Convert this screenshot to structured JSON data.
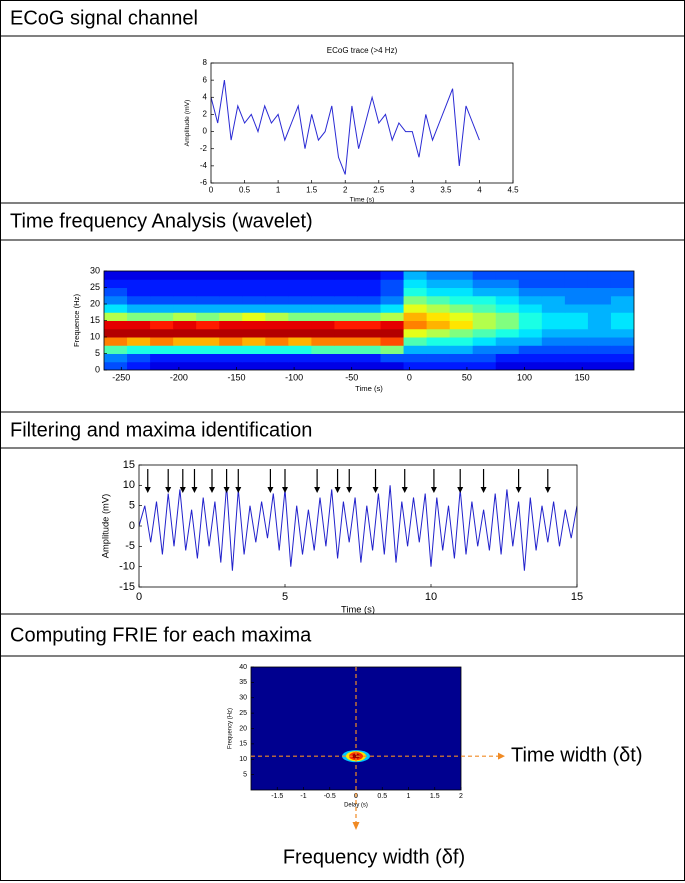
{
  "sections": [
    "ECoG signal channel",
    "Time frequency Analysis (wavelet)",
    "Filtering and maxima identification",
    "Computing FRIE for each maxima"
  ],
  "chart_data": [
    {
      "type": "line",
      "title": "ECoG trace (>4 Hz)",
      "x_label": "Time (s)",
      "y_label": "Amplitude (mV)",
      "color": "#2a2ad4",
      "x": [
        0,
        0.1,
        0.2,
        0.3,
        0.4,
        0.5,
        0.6,
        0.7,
        0.8,
        0.9,
        1,
        1.1,
        1.2,
        1.3,
        1.4,
        1.5,
        1.6,
        1.7,
        1.8,
        1.9,
        2,
        2.1,
        2.2,
        2.3,
        2.4,
        2.5,
        2.6,
        2.7,
        2.8,
        2.9,
        3,
        3.1,
        3.2,
        3.3,
        3.4,
        3.5,
        3.6,
        3.7,
        3.8,
        3.9,
        4
      ],
      "values": [
        4,
        1,
        6,
        -1,
        3,
        1,
        2,
        0,
        3,
        1,
        2,
        -1,
        1,
        3,
        -2,
        2,
        -1,
        0,
        3,
        -3,
        -5,
        3,
        -2,
        1,
        4,
        1,
        2,
        -1,
        1,
        0,
        0,
        -3,
        2,
        -1,
        1,
        3,
        5,
        -4,
        3,
        1,
        -1
      ],
      "xlim": [
        0,
        4.5
      ],
      "xticks": [
        0,
        0.5,
        1,
        1.5,
        2,
        2.5,
        3,
        3.5,
        4,
        4.5
      ],
      "ylim": [
        -6,
        8
      ],
      "yticks": [
        -6,
        -4,
        -2,
        0,
        2,
        4,
        6,
        8
      ]
    },
    {
      "type": "heatmap",
      "x_label": "Time (s)",
      "y_label": "Frequence (Hz)",
      "x": [
        -255,
        -235,
        -215,
        -195,
        -175,
        -155,
        -135,
        -115,
        -95,
        -75,
        -55,
        -35,
        -15,
        5,
        25,
        45,
        65,
        85,
        105,
        125,
        145,
        165,
        185
      ],
      "y": [
        1.25,
        3.75,
        6.25,
        8.75,
        11.25,
        13.75,
        16.25,
        18.75,
        21.25,
        23.75,
        26.25,
        28.75
      ],
      "z": [
        [
          0.2,
          0.15,
          0.1,
          0.1,
          0.1,
          0.1,
          0.1,
          0.1,
          0.1,
          0.1,
          0.1,
          0.1,
          0.1,
          0.15,
          0.15,
          0.15,
          0.15,
          0.1,
          0.1,
          0.1,
          0.1,
          0.1,
          0.1
        ],
        [
          0.25,
          0.2,
          0.15,
          0.15,
          0.15,
          0.15,
          0.15,
          0.15,
          0.15,
          0.15,
          0.15,
          0.15,
          0.2,
          0.2,
          0.2,
          0.2,
          0.2,
          0.15,
          0.15,
          0.15,
          0.15,
          0.15,
          0.15
        ],
        [
          0.45,
          0.4,
          0.4,
          0.4,
          0.4,
          0.4,
          0.4,
          0.4,
          0.4,
          0.45,
          0.45,
          0.45,
          0.5,
          0.3,
          0.3,
          0.3,
          0.25,
          0.25,
          0.2,
          0.2,
          0.2,
          0.2,
          0.2
        ],
        [
          0.75,
          0.7,
          0.75,
          0.7,
          0.7,
          0.75,
          0.7,
          0.75,
          0.7,
          0.75,
          0.75,
          0.75,
          0.8,
          0.45,
          0.4,
          0.4,
          0.35,
          0.3,
          0.3,
          0.25,
          0.25,
          0.25,
          0.25
        ],
        [
          0.95,
          0.95,
          0.95,
          0.95,
          0.95,
          0.95,
          0.95,
          0.95,
          0.95,
          0.95,
          0.95,
          0.95,
          0.95,
          0.6,
          0.55,
          0.5,
          0.45,
          0.4,
          0.35,
          0.3,
          0.3,
          0.3,
          0.3
        ],
        [
          0.9,
          0.9,
          0.85,
          0.9,
          0.85,
          0.9,
          0.9,
          0.9,
          0.9,
          0.9,
          0.85,
          0.85,
          0.9,
          0.75,
          0.7,
          0.65,
          0.55,
          0.5,
          0.4,
          0.35,
          0.35,
          0.3,
          0.35
        ],
        [
          0.55,
          0.5,
          0.5,
          0.55,
          0.5,
          0.55,
          0.6,
          0.55,
          0.5,
          0.5,
          0.5,
          0.5,
          0.55,
          0.7,
          0.65,
          0.6,
          0.55,
          0.5,
          0.4,
          0.35,
          0.35,
          0.3,
          0.35
        ],
        [
          0.35,
          0.3,
          0.3,
          0.3,
          0.3,
          0.3,
          0.3,
          0.3,
          0.3,
          0.3,
          0.3,
          0.3,
          0.35,
          0.6,
          0.55,
          0.5,
          0.45,
          0.4,
          0.35,
          0.3,
          0.3,
          0.3,
          0.3
        ],
        [
          0.25,
          0.2,
          0.2,
          0.2,
          0.2,
          0.2,
          0.2,
          0.2,
          0.2,
          0.2,
          0.2,
          0.2,
          0.25,
          0.5,
          0.45,
          0.4,
          0.4,
          0.35,
          0.3,
          0.3,
          0.25,
          0.25,
          0.3
        ],
        [
          0.2,
          0.15,
          0.15,
          0.15,
          0.15,
          0.15,
          0.15,
          0.15,
          0.15,
          0.15,
          0.15,
          0.15,
          0.2,
          0.4,
          0.35,
          0.35,
          0.3,
          0.3,
          0.25,
          0.25,
          0.25,
          0.25,
          0.25
        ],
        [
          0.15,
          0.15,
          0.15,
          0.15,
          0.15,
          0.15,
          0.15,
          0.15,
          0.15,
          0.15,
          0.15,
          0.15,
          0.2,
          0.35,
          0.3,
          0.3,
          0.25,
          0.25,
          0.2,
          0.2,
          0.2,
          0.2,
          0.2
        ],
        [
          0.1,
          0.1,
          0.1,
          0.1,
          0.1,
          0.1,
          0.1,
          0.1,
          0.1,
          0.1,
          0.1,
          0.1,
          0.15,
          0.3,
          0.25,
          0.25,
          0.2,
          0.2,
          0.2,
          0.2,
          0.2,
          0.2,
          0.2
        ]
      ],
      "xlim": [
        -265,
        195
      ],
      "xticks": [
        -250,
        -200,
        -150,
        -100,
        -50,
        0,
        50,
        100,
        150
      ],
      "ylim": [
        0,
        30
      ],
      "yticks": [
        0,
        5,
        10,
        15,
        20,
        25,
        30
      ]
    },
    {
      "type": "line",
      "x_label": "Time (s)",
      "y_label": "Amplitude (mV)",
      "color": "#2222cc",
      "x": [
        0,
        0.2,
        0.4,
        0.6,
        0.8,
        1,
        1.2,
        1.4,
        1.6,
        1.8,
        2,
        2.2,
        2.4,
        2.6,
        2.8,
        3,
        3.2,
        3.4,
        3.6,
        3.8,
        4,
        4.2,
        4.4,
        4.6,
        4.8,
        5,
        5.2,
        5.4,
        5.6,
        5.8,
        6,
        6.2,
        6.4,
        6.6,
        6.8,
        7,
        7.2,
        7.4,
        7.6,
        7.8,
        8,
        8.2,
        8.4,
        8.6,
        8.8,
        9,
        9.2,
        9.4,
        9.6,
        9.8,
        10,
        10.2,
        10.4,
        10.6,
        10.8,
        11,
        11.2,
        11.4,
        11.6,
        11.8,
        12,
        12.2,
        12.4,
        12.6,
        12.8,
        13,
        13.2,
        13.4,
        13.6,
        13.8,
        14,
        14.2,
        14.4,
        14.6,
        14.8,
        15
      ],
      "values": [
        0,
        5,
        -4,
        6,
        -7,
        8,
        -5,
        9,
        -6,
        4,
        -8,
        7,
        -5,
        6,
        -9,
        10,
        -11,
        9,
        -7,
        5,
        -4,
        6,
        -3,
        8,
        -6,
        9,
        -10,
        5,
        -7,
        4,
        -6,
        7,
        -5,
        9,
        -8,
        6,
        -4,
        7,
        -9,
        5,
        -6,
        8,
        -7,
        10,
        -9,
        6,
        -5,
        7,
        -4,
        8,
        -10,
        7,
        -6,
        5,
        -8,
        9,
        -7,
        6,
        -5,
        4,
        -6,
        8,
        -7,
        9,
        -5,
        6,
        -11,
        7,
        -6,
        5,
        -4,
        6,
        -5,
        4,
        -3,
        5
      ],
      "maxima_x": [
        0.3,
        1,
        1.5,
        1.9,
        2.5,
        3,
        3.4,
        4.5,
        5,
        6.1,
        6.8,
        7.2,
        8.1,
        9.1,
        10.1,
        11,
        11.8,
        13,
        14
      ],
      "xlim": [
        0,
        15
      ],
      "xticks": [
        0,
        5,
        10,
        15
      ],
      "ylim": [
        -15,
        15
      ],
      "yticks": [
        -15,
        -10,
        -5,
        0,
        5,
        10,
        15
      ]
    },
    {
      "type": "peak",
      "x_label": "Delay (s)",
      "y_label": "Frequency (Hz)",
      "background": "#00008f",
      "line_color": "#f08a24",
      "peak": {
        "x": 0,
        "y": 11
      },
      "annotations": [
        "Time width (δt)",
        "Frequency width (δf)"
      ],
      "xlim": [
        -2,
        2
      ],
      "xticks": [
        -1.5,
        -1,
        -0.5,
        0,
        0.5,
        1,
        1.5,
        2
      ],
      "ylim": [
        0,
        40
      ],
      "yticks": [
        5,
        10,
        15,
        20,
        25,
        30,
        35,
        40
      ]
    }
  ]
}
